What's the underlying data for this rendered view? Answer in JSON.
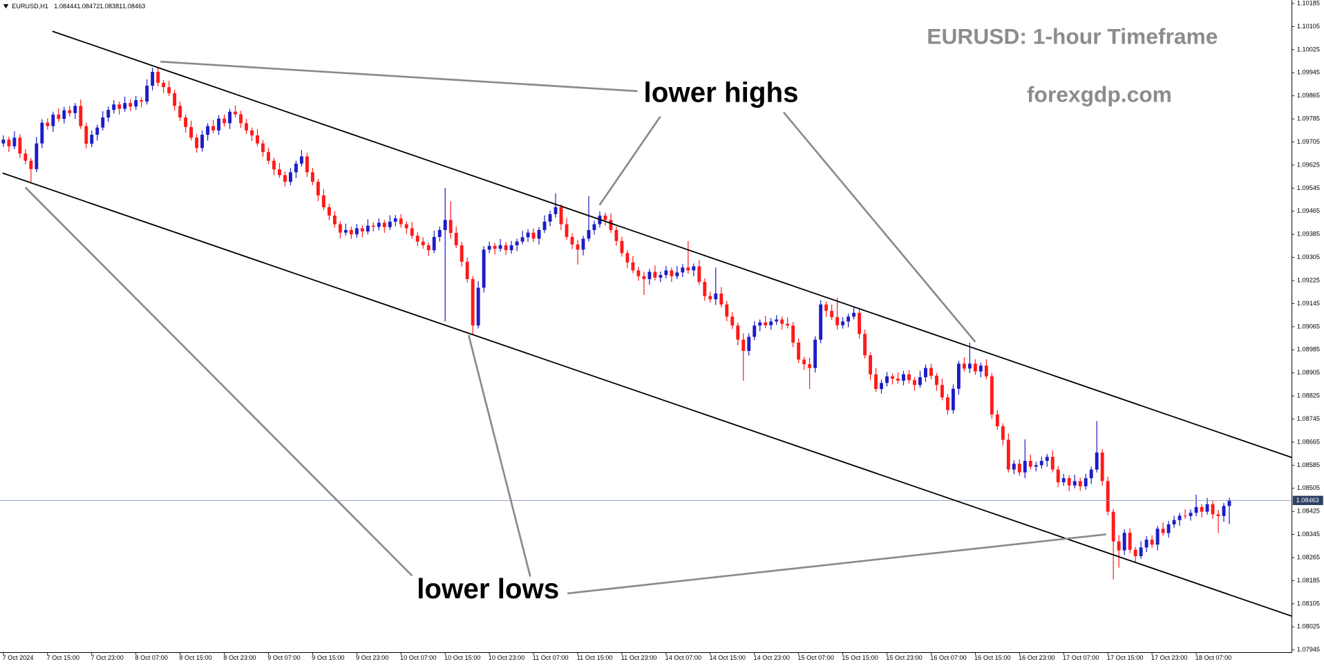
{
  "chart_data": {
    "type": "candlestick",
    "title": "EURUSD: 1-hour Timeframe",
    "subtitle": "forexgdp.com",
    "symbol_label": "EURUSD,H1",
    "annotations": [
      "lower highs",
      "lower lows"
    ],
    "up_color": "#1c1cc8",
    "down_color": "#ff1a1a",
    "price_line_color": "#8ea2bb",
    "grid": false,
    "ylim": [
      1.07939,
      1.10197
    ],
    "yticks": [
      1.10185,
      1.10105,
      1.10025,
      1.09945,
      1.09865,
      1.09785,
      1.09705,
      1.09625,
      1.09545,
      1.09465,
      1.09385,
      1.09305,
      1.09225,
      1.09145,
      1.09065,
      1.08985,
      1.08905,
      1.08825,
      1.08745,
      1.08665,
      1.08585,
      1.08505,
      1.08425,
      1.08345,
      1.08265,
      1.08185,
      1.08105,
      1.08025,
      1.07945
    ],
    "categories": [
      "7 Oct 2024",
      null,
      null,
      null,
      null,
      null,
      null,
      null,
      "7 Oct 15:00",
      null,
      null,
      null,
      null,
      null,
      null,
      null,
      "7 Oct 23:00",
      null,
      null,
      null,
      null,
      null,
      null,
      null,
      "8 Oct 07:00",
      null,
      null,
      null,
      null,
      null,
      null,
      null,
      "8 Oct 15:00",
      null,
      null,
      null,
      null,
      null,
      null,
      null,
      "8 Oct 23:00",
      null,
      null,
      null,
      null,
      null,
      null,
      null,
      "9 Oct 07:00",
      null,
      null,
      null,
      null,
      null,
      null,
      null,
      "9 Oct 15:00",
      null,
      null,
      null,
      null,
      null,
      null,
      null,
      "9 Oct 23:00",
      null,
      null,
      null,
      null,
      null,
      null,
      null,
      "10 Oct 07:00",
      null,
      null,
      null,
      null,
      null,
      null,
      null,
      "10 Oct 15:00",
      null,
      null,
      null,
      null,
      null,
      null,
      null,
      "10 Oct 23:00",
      null,
      null,
      null,
      null,
      null,
      null,
      null,
      "11 Oct 07:00",
      null,
      null,
      null,
      null,
      null,
      null,
      null,
      "11 Oct 15:00",
      null,
      null,
      null,
      null,
      null,
      null,
      null,
      "11 Oct 23:00",
      null,
      null,
      null,
      null,
      null,
      null,
      null,
      "14 Oct 07:00",
      null,
      null,
      null,
      null,
      null,
      null,
      null,
      "14 Oct 15:00",
      null,
      null,
      null,
      null,
      null,
      null,
      null,
      "14 Oct 23:00",
      null,
      null,
      null,
      null,
      null,
      null,
      null,
      "15 Oct 07:00",
      null,
      null,
      null,
      null,
      null,
      null,
      null,
      "15 Oct 15:00",
      null,
      null,
      null,
      null,
      null,
      null,
      null,
      "15 Oct 23:00",
      null,
      null,
      null,
      null,
      null,
      null,
      null,
      "16 Oct 07:00",
      null,
      null,
      null,
      null,
      null,
      null,
      null,
      "16 Oct 15:00",
      null,
      null,
      null,
      null,
      null,
      null,
      null,
      "16 Oct 23:00",
      null,
      null,
      null,
      null,
      null,
      null,
      null,
      "17 Oct 07:00",
      null,
      null,
      null,
      null,
      null,
      null,
      null,
      "17 Oct 15:00",
      null,
      null,
      null,
      null,
      null,
      null,
      null,
      "17 Oct 23:00",
      null,
      null,
      null,
      null,
      null,
      null,
      null,
      "18 Oct 07:00",
      null,
      null,
      null,
      null,
      null,
      null
    ],
    "open": [
      1.097,
      1.09713,
      1.0969,
      1.0972,
      1.09665,
      1.0964,
      1.09611,
      1.097,
      1.09772,
      1.0976,
      1.098,
      1.09785,
      1.09815,
      1.09805,
      1.0983,
      1.0976,
      1.09699,
      1.0973,
      1.09755,
      1.0979,
      1.09816,
      1.09835,
      1.0982,
      1.0984,
      1.09828,
      1.0985,
      1.09845,
      1.099,
      1.09948,
      1.0991,
      1.09895,
      1.09874,
      1.0983,
      1.0979,
      1.09757,
      1.0972,
      1.09684,
      1.0973,
      1.0976,
      1.09745,
      1.09786,
      1.0977,
      1.0981,
      1.09801,
      1.0977,
      1.09745,
      1.09728,
      1.097,
      1.0967,
      1.0964,
      1.0961,
      1.0959,
      1.09567,
      1.096,
      1.0963,
      1.09655,
      1.096,
      1.09567,
      1.0952,
      1.09479,
      1.0945,
      1.0942,
      1.09391,
      1.094,
      1.09385,
      1.09406,
      1.09395,
      1.09415,
      1.09411,
      1.09425,
      1.0941,
      1.09429,
      1.0944,
      1.0942,
      1.09406,
      1.0938,
      1.0936,
      1.09347,
      1.0933,
      1.09376,
      1.094,
      1.09435,
      1.0939,
      1.09347,
      1.0929,
      1.0923,
      1.09069,
      1.092,
      1.09332,
      1.09345,
      1.09335,
      1.09347,
      1.0933,
      1.09347,
      1.0936,
      1.09375,
      1.09391,
      1.0937,
      1.094,
      1.09429,
      1.09455,
      1.09479,
      1.0942,
      1.09376,
      1.0935,
      1.09332,
      1.0937,
      1.094,
      1.0942,
      1.0945,
      1.09435,
      1.094,
      1.09362,
      1.0932,
      1.09288,
      1.0926,
      1.0924,
      1.0923,
      1.09255,
      1.09235,
      1.09244,
      1.0926,
      1.0924,
      1.09253,
      1.0927,
      1.0926,
      1.09274,
      1.0922,
      1.09171,
      1.0916,
      1.0918,
      1.09142,
      1.091,
      1.09069,
      1.0902,
      1.08981,
      1.0903,
      1.09069,
      1.0908,
      1.0907,
      1.09083,
      1.0909,
      1.09075,
      1.09069,
      1.0901,
      1.08951,
      1.08935,
      1.08922,
      1.0902,
      1.09142,
      1.0912,
      1.09098,
      1.0907,
      1.09083,
      1.091,
      1.09113,
      1.0904,
      1.08966,
      1.089,
      1.08849,
      1.0887,
      1.08893,
      1.08885,
      1.08878,
      1.089,
      1.0888,
      1.08863,
      1.0889,
      1.08922,
      1.08895,
      1.08863,
      1.0882,
      1.08776,
      1.0885,
      1.08937,
      1.0892,
      1.08937,
      1.0891,
      1.0893,
      1.08893,
      1.08761,
      1.0872,
      1.08673,
      1.0857,
      1.0859,
      1.0856,
      1.086,
      1.0858,
      1.08585,
      1.086,
      1.08614,
      1.0857,
      1.08526,
      1.0854,
      1.08515,
      1.0853,
      1.08512,
      1.0854,
      1.0857,
      1.08629,
      1.0853,
      1.08424,
      1.08321,
      1.0829,
      1.08351,
      1.08292,
      1.0827,
      1.083,
      1.08327,
      1.0831,
      1.08365,
      1.0835,
      1.0838,
      1.08395,
      1.0841,
      1.08409,
      1.0842,
      1.0844,
      1.08424,
      1.0845,
      1.08415,
      1.08409,
      1.08444
    ],
    "high": [
      1.09728,
      1.09723,
      1.09742,
      1.09732,
      1.0968,
      1.0965,
      1.09722,
      1.09784,
      1.09787,
      1.0981,
      1.09822,
      1.09827,
      1.0983,
      1.0984,
      1.09852,
      1.09772,
      1.09745,
      1.09765,
      1.09812,
      1.09828,
      1.0985,
      1.09845,
      1.09862,
      1.09852,
      1.09865,
      1.0986,
      1.09922,
      1.09962,
      1.09963,
      1.0992,
      1.09917,
      1.09886,
      1.09845,
      1.098,
      1.09779,
      1.09732,
      1.09745,
      1.0977,
      1.09782,
      1.09798,
      1.09801,
      1.0982,
      1.09832,
      1.09813,
      1.09785,
      1.09755,
      1.0975,
      1.09712,
      1.09685,
      1.0965,
      1.09632,
      1.09602,
      1.09615,
      1.0964,
      1.09677,
      1.09667,
      1.09615,
      1.09577,
      1.09542,
      1.09491,
      1.09465,
      1.0943,
      1.09422,
      1.09412,
      1.09421,
      1.09416,
      1.09437,
      1.09427,
      1.0944,
      1.09435,
      1.09451,
      1.09452,
      1.09455,
      1.0943,
      1.09428,
      1.09392,
      1.09375,
      1.09357,
      1.09398,
      1.09412,
      1.09546,
      1.095,
      1.09412,
      1.09359,
      1.09305,
      1.0924,
      1.09222,
      1.09344,
      1.0936,
      1.09355,
      1.09369,
      1.09359,
      1.09362,
      1.0937,
      1.09397,
      1.09403,
      1.09406,
      1.0941,
      1.09451,
      1.09467,
      1.09527,
      1.09489,
      1.09442,
      1.09388,
      1.09365,
      1.0938,
      1.09517,
      1.09432,
      1.09465,
      1.0946,
      1.09457,
      1.09412,
      1.09377,
      1.0933,
      1.0931,
      1.09272,
      1.09255,
      1.09265,
      1.09277,
      1.09256,
      1.09275,
      1.0927,
      1.09275,
      1.09282,
      1.09362,
      1.09284,
      1.09296,
      1.09232,
      1.09186,
      1.0927,
      1.09202,
      1.09154,
      1.09115,
      1.09079,
      1.09042,
      1.09042,
      1.09084,
      1.0909,
      1.09102,
      1.09095,
      1.09105,
      1.091,
      1.09097,
      1.09081,
      1.09025,
      1.08961,
      1.08957,
      1.09032,
      1.09157,
      1.09152,
      1.09142,
      1.09165,
      1.09098,
      1.0911,
      1.09135,
      1.09125,
      1.09055,
      1.08976,
      1.08922,
      1.08882,
      1.08908,
      1.08903,
      1.08907,
      1.08912,
      1.08915,
      1.0889,
      1.08912,
      1.08934,
      1.08937,
      1.08905,
      1.08885,
      1.08832,
      1.08865,
      1.08947,
      1.08959,
      1.0901,
      1.08952,
      1.0894,
      1.08952,
      1.08905,
      1.08776,
      1.0873,
      1.08695,
      1.08602,
      1.08605,
      1.08675,
      1.08622,
      1.08597,
      1.08615,
      1.08624,
      1.08636,
      1.08582,
      1.08555,
      1.0855,
      1.08552,
      1.08542,
      1.08555,
      1.0858,
      1.08738,
      1.08641,
      1.08545,
      1.08434,
      1.08343,
      1.08363,
      1.08366,
      1.08302,
      1.08322,
      1.08339,
      1.08342,
      1.08375,
      1.08387,
      1.08392,
      1.0841,
      1.0842,
      1.08432,
      1.08432,
      1.08483,
      1.0845,
      1.08472,
      1.08462,
      1.0843,
      1.08454,
      1.08472
    ],
    "low": [
      1.09688,
      1.0967,
      1.0968,
      1.09649,
      1.09628,
      1.09567,
      1.09601,
      1.09684,
      1.09748,
      1.0974,
      1.09775,
      1.09769,
      1.09793,
      1.09785,
      1.0975,
      1.09683,
      1.09687,
      1.0971,
      1.09745,
      1.09774,
      1.09804,
      1.098,
      1.0981,
      1.09812,
      1.09816,
      1.09825,
      1.09835,
      1.09884,
      1.09898,
      1.09875,
      1.09864,
      1.09814,
      1.09778,
      1.09737,
      1.0971,
      1.09668,
      1.09672,
      1.0971,
      1.09735,
      1.09729,
      1.09758,
      1.0975,
      1.09791,
      1.09754,
      1.09733,
      1.09708,
      1.0969,
      1.09654,
      1.09628,
      1.0959,
      1.0958,
      1.09551,
      1.09555,
      1.0958,
      1.0962,
      1.09584,
      1.09555,
      1.095,
      1.09469,
      1.09434,
      1.09408,
      1.09371,
      1.09381,
      1.09369,
      1.09373,
      1.09375,
      1.09385,
      1.09395,
      1.09399,
      1.0939,
      1.094,
      1.09413,
      1.09408,
      1.09386,
      1.0937,
      1.09344,
      1.09335,
      1.0931,
      1.0932,
      1.0936,
      1.09083,
      1.0937,
      1.09337,
      1.09274,
      1.09218,
      1.09039,
      1.09059,
      1.09184,
      1.0932,
      1.09315,
      1.09325,
      1.09314,
      1.09318,
      1.09327,
      1.0935,
      1.09359,
      1.09358,
      1.0935,
      1.0939,
      1.09413,
      1.09443,
      1.094,
      1.09366,
      1.09334,
      1.0928,
      1.09312,
      1.0936,
      1.09384,
      1.09408,
      1.09415,
      1.0939,
      1.09346,
      1.09308,
      1.09268,
      1.0925,
      1.09224,
      1.09175,
      1.0921,
      1.09225,
      1.09219,
      1.09232,
      1.0922,
      1.0923,
      1.09237,
      1.09248,
      1.0924,
      1.0921,
      1.09155,
      1.09148,
      1.0914,
      1.09132,
      1.09084,
      1.09057,
      1.09,
      1.08878,
      1.08965,
      1.09018,
      1.09049,
      1.0906,
      1.09054,
      1.09071,
      1.09055,
      1.09059,
      1.08994,
      1.08939,
      1.08915,
      1.08849,
      1.08906,
      1.09008,
      1.091,
      1.09088,
      1.09054,
      1.09058,
      1.09063,
      1.0909,
      1.09024,
      1.08954,
      1.0888,
      1.08839,
      1.08833,
      1.08858,
      1.08865,
      1.08868,
      1.08862,
      1.08868,
      1.08843,
      1.08853,
      1.08874,
      1.08883,
      1.08843,
      1.0881,
      1.0876,
      1.08764,
      1.0883,
      1.0891,
      1.08904,
      1.08898,
      1.0889,
      1.08883,
      1.08745,
      1.08708,
      1.08653,
      1.0856,
      1.08554,
      1.08548,
      1.0854,
      1.0857,
      1.08564,
      1.08573,
      1.0858,
      1.0856,
      1.0851,
      1.08514,
      1.08495,
      1.08505,
      1.08496,
      1.085,
      1.0852,
      1.0856,
      1.08514,
      1.08412,
      1.08189,
      1.0823,
      1.08274,
      1.0828,
      1.0825,
      1.0826,
      1.08284,
      1.08298,
      1.0829,
      1.0834,
      1.08334,
      1.08368,
      1.08375,
      1.08399,
      1.08393,
      1.08408,
      1.08404,
      1.08414,
      1.08399,
      1.0835,
      1.08389,
      1.08381
    ],
    "close": [
      1.09713,
      1.0969,
      1.0972,
      1.09665,
      1.0964,
      1.09611,
      1.097,
      1.09772,
      1.0976,
      1.098,
      1.09785,
      1.09815,
      1.09805,
      1.0983,
      1.0976,
      1.09699,
      1.0973,
      1.09755,
      1.0979,
      1.09816,
      1.09835,
      1.0982,
      1.0984,
      1.09828,
      1.0985,
      1.09845,
      1.099,
      1.09948,
      1.0991,
      1.09895,
      1.09874,
      1.0983,
      1.0979,
      1.09757,
      1.0972,
      1.09684,
      1.0973,
      1.0976,
      1.09745,
      1.09786,
      1.0977,
      1.0981,
      1.09801,
      1.0977,
      1.09745,
      1.09728,
      1.097,
      1.0967,
      1.0964,
      1.0961,
      1.0959,
      1.09567,
      1.096,
      1.0963,
      1.09655,
      1.096,
      1.09567,
      1.0952,
      1.09479,
      1.0945,
      1.0942,
      1.09391,
      1.094,
      1.09385,
      1.09406,
      1.09395,
      1.09415,
      1.09411,
      1.09425,
      1.0941,
      1.09429,
      1.0944,
      1.0942,
      1.09406,
      1.0938,
      1.0936,
      1.09347,
      1.0933,
      1.09376,
      1.094,
      1.09435,
      1.0939,
      1.09347,
      1.0929,
      1.0923,
      1.09069,
      1.092,
      1.09332,
      1.09345,
      1.09335,
      1.09347,
      1.0933,
      1.09347,
      1.0936,
      1.09375,
      1.09391,
      1.0937,
      1.094,
      1.09429,
      1.09455,
      1.09479,
      1.0942,
      1.09376,
      1.0935,
      1.09332,
      1.0937,
      1.094,
      1.0942,
      1.0945,
      1.09435,
      1.094,
      1.09362,
      1.0932,
      1.09288,
      1.0926,
      1.0924,
      1.0923,
      1.09255,
      1.09235,
      1.09244,
      1.0926,
      1.0924,
      1.09253,
      1.0927,
      1.0926,
      1.09274,
      1.0922,
      1.09171,
      1.0916,
      1.0918,
      1.09142,
      1.091,
      1.09069,
      1.0902,
      1.08981,
      1.0903,
      1.09069,
      1.0908,
      1.0907,
      1.09083,
      1.0909,
      1.09075,
      1.09069,
      1.0901,
      1.08951,
      1.08935,
      1.08922,
      1.0902,
      1.09142,
      1.0912,
      1.09098,
      1.0907,
      1.09083,
      1.091,
      1.09113,
      1.0904,
      1.08966,
      1.089,
      1.08849,
      1.0887,
      1.08893,
      1.08885,
      1.08878,
      1.089,
      1.0888,
      1.08863,
      1.0889,
      1.08922,
      1.08895,
      1.08863,
      1.0882,
      1.08776,
      1.0885,
      1.08937,
      1.0892,
      1.08937,
      1.0891,
      1.0893,
      1.08893,
      1.08761,
      1.0872,
      1.08673,
      1.0857,
      1.0859,
      1.0856,
      1.086,
      1.0858,
      1.08585,
      1.086,
      1.08614,
      1.0857,
      1.08526,
      1.0854,
      1.08515,
      1.0853,
      1.08512,
      1.0854,
      1.0857,
      1.08629,
      1.0853,
      1.08424,
      1.08321,
      1.0829,
      1.08351,
      1.08292,
      1.0827,
      1.083,
      1.08327,
      1.0831,
      1.08365,
      1.0835,
      1.0838,
      1.08395,
      1.0841,
      1.08409,
      1.0842,
      1.0844,
      1.08424,
      1.0845,
      1.08415,
      1.08409,
      1.08444,
      1.08463
    ]
  }
}
